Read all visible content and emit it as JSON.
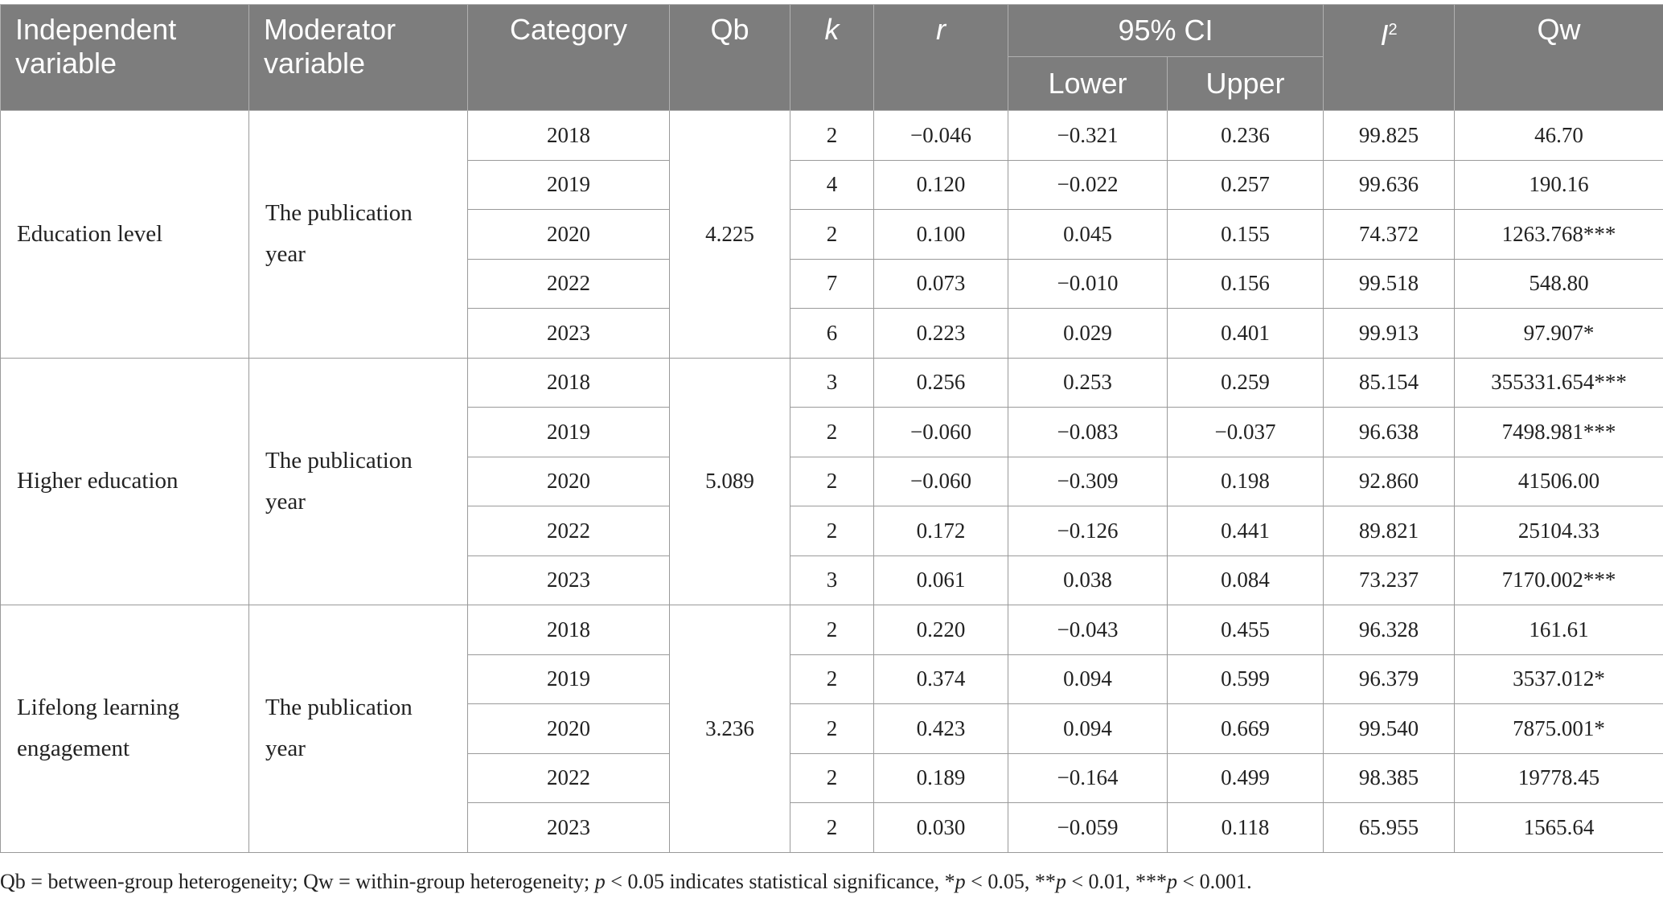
{
  "table": {
    "headers": {
      "independent": "Independent variable",
      "moderator": "Moderator variable",
      "category": "Category",
      "qb": "Qb",
      "k": "k",
      "r": "r",
      "ci": "95% CI",
      "ci_lower": "Lower",
      "ci_upper": "Upper",
      "i2_letter": "I",
      "i2_sup": "2",
      "qw": "Qw"
    },
    "groups": [
      {
        "independent": "Education level",
        "moderator": "The publication year",
        "qb": "4.225",
        "rows": [
          {
            "category": "2018",
            "k": "2",
            "r": "−0.046",
            "lower": "−0.321",
            "upper": "0.236",
            "i2": "99.825",
            "qw": "46.70"
          },
          {
            "category": "2019",
            "k": "4",
            "r": "0.120",
            "lower": "−0.022",
            "upper": "0.257",
            "i2": "99.636",
            "qw": "190.16"
          },
          {
            "category": "2020",
            "k": "2",
            "r": "0.100",
            "lower": "0.045",
            "upper": "0.155",
            "i2": "74.372",
            "qw": "1263.768***"
          },
          {
            "category": "2022",
            "k": "7",
            "r": "0.073",
            "lower": "−0.010",
            "upper": "0.156",
            "i2": "99.518",
            "qw": "548.80"
          },
          {
            "category": "2023",
            "k": "6",
            "r": "0.223",
            "lower": "0.029",
            "upper": "0.401",
            "i2": "99.913",
            "qw": "97.907*"
          }
        ]
      },
      {
        "independent": "Higher education",
        "moderator": "The publication year",
        "qb": "5.089",
        "rows": [
          {
            "category": "2018",
            "k": "3",
            "r": "0.256",
            "lower": "0.253",
            "upper": "0.259",
            "i2": "85.154",
            "qw": "355331.654***"
          },
          {
            "category": "2019",
            "k": "2",
            "r": "−0.060",
            "lower": "−0.083",
            "upper": "−0.037",
            "i2": "96.638",
            "qw": "7498.981***"
          },
          {
            "category": "2020",
            "k": "2",
            "r": "−0.060",
            "lower": "−0.309",
            "upper": "0.198",
            "i2": "92.860",
            "qw": "41506.00"
          },
          {
            "category": "2022",
            "k": "2",
            "r": "0.172",
            "lower": "−0.126",
            "upper": "0.441",
            "i2": "89.821",
            "qw": "25104.33"
          },
          {
            "category": "2023",
            "k": "3",
            "r": "0.061",
            "lower": "0.038",
            "upper": "0.084",
            "i2": "73.237",
            "qw": "7170.002***"
          }
        ]
      },
      {
        "independent": "Lifelong learning engagement",
        "moderator": "The publication year",
        "qb": "3.236",
        "rows": [
          {
            "category": "2018",
            "k": "2",
            "r": "0.220",
            "lower": "−0.043",
            "upper": "0.455",
            "i2": "96.328",
            "qw": "161.61"
          },
          {
            "category": "2019",
            "k": "2",
            "r": "0.374",
            "lower": "0.094",
            "upper": "0.599",
            "i2": "96.379",
            "qw": "3537.012*"
          },
          {
            "category": "2020",
            "k": "2",
            "r": "0.423",
            "lower": "0.094",
            "upper": "0.669",
            "i2": "99.540",
            "qw": "7875.001*"
          },
          {
            "category": "2022",
            "k": "2",
            "r": "0.189",
            "lower": "−0.164",
            "upper": "0.499",
            "i2": "98.385",
            "qw": "19778.45"
          },
          {
            "category": "2023",
            "k": "2",
            "r": "0.030",
            "lower": "−0.059",
            "upper": "0.118",
            "i2": "65.955",
            "qw": "1565.64"
          }
        ]
      }
    ]
  },
  "note": {
    "t1": "Qb = between-group heterogeneity; Qw = within-group heterogeneity; ",
    "p1": "p",
    "t2": " < 0.05 indicates statistical significance, *",
    "p2": "p",
    "t3": " < 0.05, **",
    "p3": "p",
    "t4": " < 0.01, ***",
    "p4": "p",
    "t5": " < 0.001."
  }
}
